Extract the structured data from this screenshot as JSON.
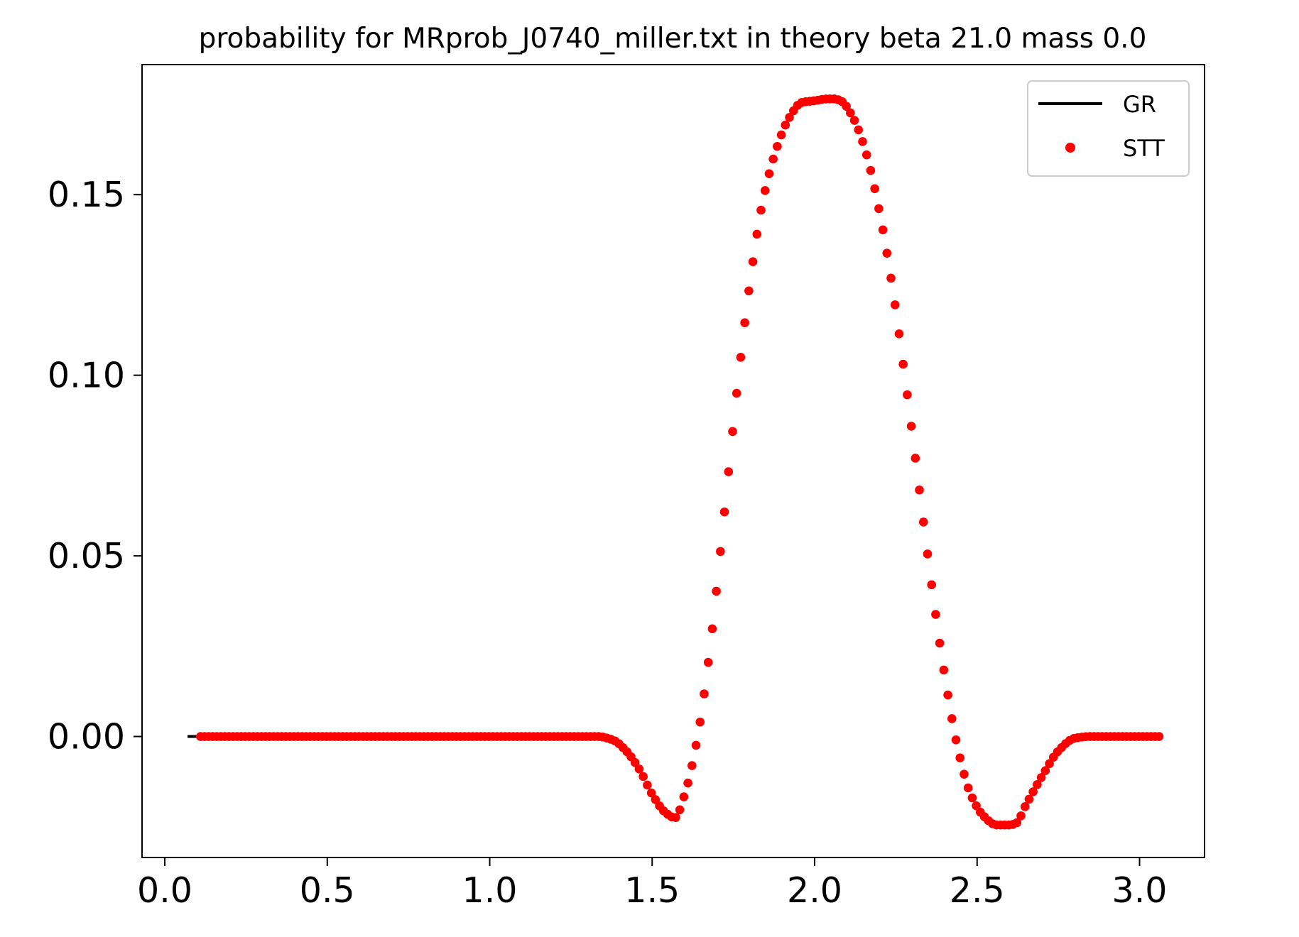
{
  "chart_data": {
    "type": "scatter",
    "title": "probability for MRprob_J0740_miller.txt in theory beta 21.0 mass 0.0",
    "xlabel": "",
    "ylabel": "",
    "xlim": [
      -0.07,
      3.2
    ],
    "ylim": [
      -0.0335,
      0.186
    ],
    "xticks": [
      0.0,
      0.5,
      1.0,
      1.5,
      2.0,
      2.5,
      3.0
    ],
    "xtick_labels": [
      "0.0",
      "0.5",
      "1.0",
      "1.5",
      "2.0",
      "2.5",
      "3.0"
    ],
    "yticks": [
      0.0,
      0.05,
      0.1,
      0.15
    ],
    "ytick_labels": [
      "0.00",
      "0.05",
      "0.10",
      "0.15"
    ],
    "grid": false,
    "legend": {
      "placement": "top-right",
      "entries": [
        "GR",
        "STT"
      ]
    },
    "series": [
      {
        "name": "GR",
        "style": "line",
        "color": "#000000",
        "x": [
          0.07,
          0.11
        ],
        "y": [
          0.0,
          0.0
        ]
      },
      {
        "name": "STT",
        "style": "points",
        "color": "#ff0000",
        "x": [
          0.11,
          0.2,
          0.4,
          0.6,
          0.8,
          1.0,
          1.2,
          1.33,
          1.38,
          1.42,
          1.46,
          1.5,
          1.54,
          1.57,
          1.6,
          1.64,
          1.68,
          1.72,
          1.76,
          1.8,
          1.84,
          1.88,
          1.92,
          1.96,
          2.0,
          2.04,
          2.06,
          2.08,
          2.12,
          2.16,
          2.2,
          2.24,
          2.28,
          2.32,
          2.36,
          2.4,
          2.44,
          2.48,
          2.52,
          2.56,
          2.6,
          2.62,
          2.65,
          2.7,
          2.75,
          2.8,
          2.85,
          2.9,
          3.0,
          3.07
        ],
        "y": [
          0.0,
          0.0,
          0.0,
          0.0,
          0.0,
          0.0,
          0.0,
          0.0,
          -0.001,
          -0.004,
          -0.009,
          -0.016,
          -0.021,
          -0.0225,
          -0.016,
          0.0,
          0.026,
          0.06,
          0.095,
          0.125,
          0.148,
          0.162,
          0.171,
          0.1755,
          0.176,
          0.1765,
          0.1765,
          0.176,
          0.171,
          0.161,
          0.145,
          0.124,
          0.098,
          0.07,
          0.042,
          0.017,
          -0.003,
          -0.016,
          -0.022,
          -0.0245,
          -0.0245,
          -0.024,
          -0.019,
          -0.011,
          -0.004,
          -0.0005,
          0.0,
          0.0,
          0.0,
          0.0
        ]
      }
    ]
  }
}
